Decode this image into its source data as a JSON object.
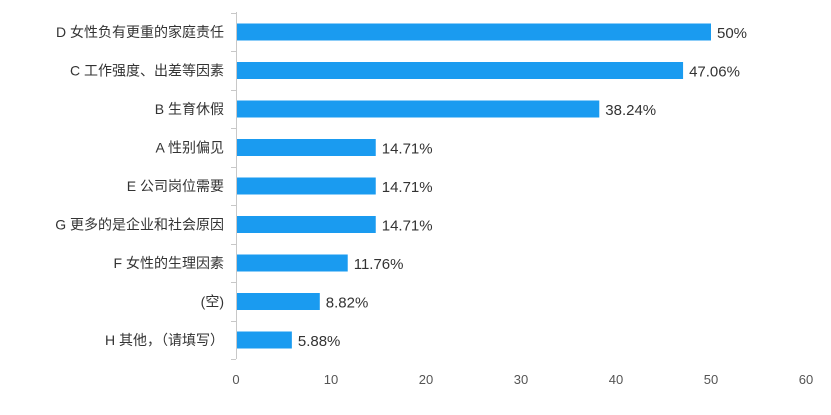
{
  "chart_data": {
    "type": "bar",
    "orientation": "horizontal",
    "title": "",
    "xlabel": "",
    "ylabel": "",
    "xlim": [
      0,
      60
    ],
    "xticks": [
      0,
      10,
      20,
      30,
      40,
      50,
      60
    ],
    "grid": false,
    "legend": "none",
    "bar_color": "#1a9bf0",
    "categories": [
      "D 女性负有更重的家庭责任",
      "C 工作强度、出差等因素",
      "B 生育休假",
      "A 性别偏见",
      "E 公司岗位需要",
      "G 更多的是企业和社会原因",
      "F 女性的生理因素",
      "(空)",
      "H 其他，（请填写）"
    ],
    "values": [
      50,
      47.06,
      38.24,
      14.71,
      14.71,
      14.71,
      11.76,
      8.82,
      5.88
    ],
    "value_labels": [
      "50%",
      "47.06%",
      "38.24%",
      "14.71%",
      "14.71%",
      "14.71%",
      "11.76%",
      "8.82%",
      "5.88%"
    ]
  }
}
